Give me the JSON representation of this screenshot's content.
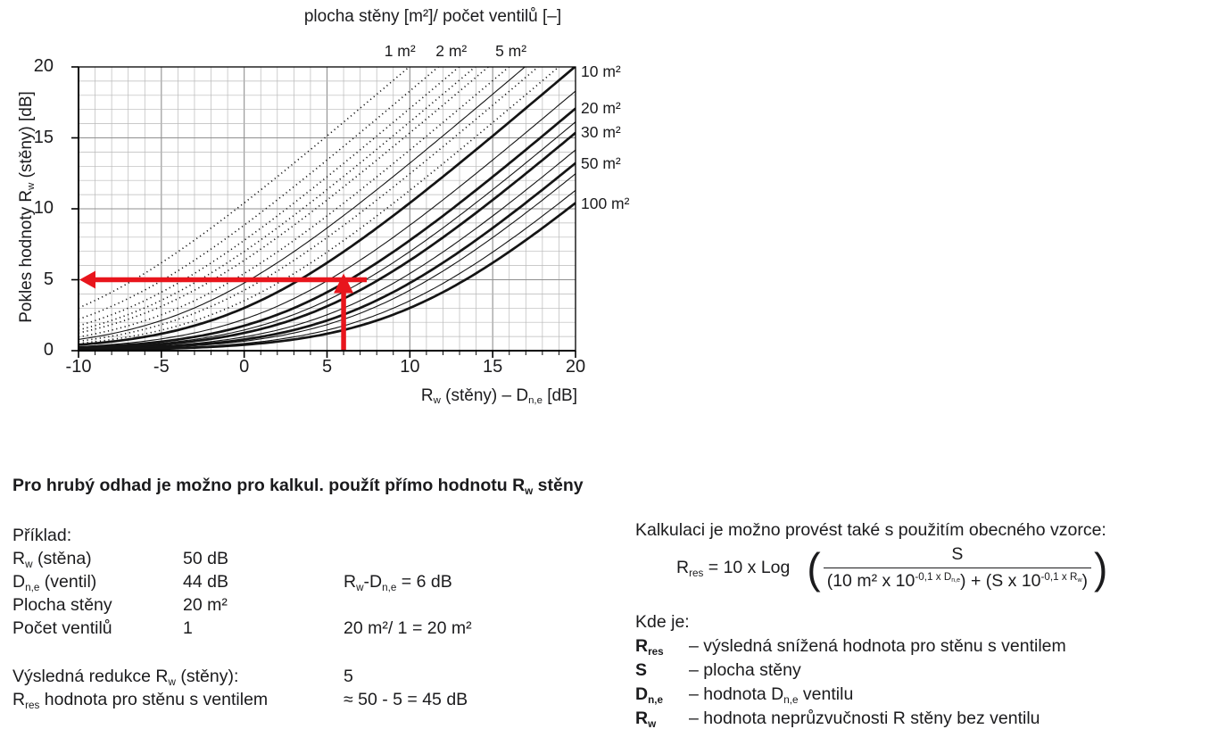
{
  "chart": {
    "title": "plocha stěny [m²]/ počet ventilů [–]",
    "y_axis_label": "Pokles hodnoty R_{w} (stěny) [dB]",
    "x_axis_label": "R_{w} (stěny) – D_{n,e} [dB]"
  },
  "chart_data": {
    "type": "line",
    "title": "plocha stěny [m²]/ počet ventilů [–]",
    "xlabel": "Rw (stěny) – Dn,e [dB]",
    "ylabel": "Pokles hodnoty Rw (stěny) [dB]",
    "xlim": [
      -10,
      20
    ],
    "ylim": [
      0,
      20
    ],
    "x_ticks": [
      -10,
      -5,
      0,
      5,
      10,
      15,
      20
    ],
    "y_ticks": [
      0,
      5,
      10,
      15,
      20
    ],
    "grid": "minor gridlines every 1 dB on both axes",
    "function": "pokles = 10*log10(1 + (10/Sn)*10^(x/10)), Sn = plocha stěny / počet ventilů [m²]",
    "x_samples": [
      -10,
      -5,
      0,
      5,
      10,
      15,
      20
    ],
    "series": [
      {
        "area_per_valve": 1,
        "style": "dotted",
        "label": "1 m²",
        "label_side": "top",
        "label_x": 9.4,
        "y_at_x": [
          3.0,
          6.2,
          10.4,
          15.1,
          20.0,
          20.0,
          20.0
        ]
      },
      {
        "area_per_valve": 1.5,
        "style": "dotted",
        "y_at_x": [
          2.2,
          4.9,
          8.8,
          13.4,
          18.3,
          20.0,
          20.0
        ]
      },
      {
        "area_per_valve": 2,
        "style": "dotted",
        "label": "2 m²",
        "label_side": "top",
        "label_x": 12.5,
        "y_at_x": [
          1.8,
          4.1,
          7.8,
          12.3,
          17.1,
          20.0,
          20.0
        ]
      },
      {
        "area_per_valve": 2.5,
        "style": "dotted",
        "y_at_x": [
          1.5,
          3.6,
          7.0,
          11.4,
          16.1,
          20.0,
          20.0
        ]
      },
      {
        "area_per_valve": 3,
        "style": "dotted",
        "y_at_x": [
          1.2,
          3.1,
          6.4,
          10.6,
          15.4,
          20.0,
          20.0
        ]
      },
      {
        "area_per_valve": 4,
        "style": "dotted",
        "y_at_x": [
          1.0,
          2.5,
          5.4,
          9.5,
          14.1,
          19.0,
          20.0
        ]
      },
      {
        "area_per_valve": 5,
        "style": "thin",
        "label": "5 m²",
        "label_side": "top",
        "label_x": 16.1,
        "y_at_x": [
          0.8,
          2.1,
          4.8,
          8.6,
          13.2,
          18.1,
          20.0
        ]
      },
      {
        "area_per_valve": 6,
        "style": "dotted",
        "y_at_x": [
          0.7,
          1.8,
          4.3,
          8.0,
          12.5,
          17.3,
          20.0
        ]
      },
      {
        "area_per_valve": 8,
        "style": "dotted",
        "y_at_x": [
          0.5,
          1.4,
          3.5,
          6.9,
          11.3,
          16.1,
          20.0
        ]
      },
      {
        "area_per_valve": 10,
        "style": "thick",
        "label": "10 m²",
        "label_side": "right",
        "y_at_x": [
          0.4,
          1.2,
          3.0,
          6.2,
          10.4,
          15.1,
          20.0
        ]
      },
      {
        "area_per_valve": 15,
        "style": "thin",
        "y_at_x": [
          0.3,
          0.8,
          2.2,
          4.9,
          8.8,
          13.4,
          18.3
        ]
      },
      {
        "area_per_valve": 20,
        "style": "thick",
        "label": "20 m²",
        "label_side": "right",
        "y_at_x": [
          0.2,
          0.6,
          1.8,
          4.1,
          7.8,
          12.3,
          17.1
        ]
      },
      {
        "area_per_valve": 25,
        "style": "thin",
        "y_at_x": [
          0.2,
          0.5,
          1.5,
          3.6,
          7.0,
          11.4,
          16.1
        ]
      },
      {
        "area_per_valve": 30,
        "style": "thick",
        "label": "30 m²",
        "label_side": "right",
        "y_at_x": [
          0.1,
          0.4,
          1.2,
          3.1,
          6.4,
          10.6,
          15.4
        ]
      },
      {
        "area_per_valve": 40,
        "style": "thin",
        "y_at_x": [
          0.1,
          0.3,
          1.0,
          2.5,
          5.4,
          9.5,
          14.1
        ]
      },
      {
        "area_per_valve": 50,
        "style": "thick",
        "label": "50 m²",
        "label_side": "right",
        "y_at_x": [
          0.1,
          0.3,
          0.8,
          2.1,
          4.8,
          8.6,
          13.2
        ]
      },
      {
        "area_per_valve": 60,
        "style": "thin",
        "y_at_x": [
          0.1,
          0.2,
          0.7,
          1.8,
          4.3,
          8.0,
          12.5
        ]
      },
      {
        "area_per_valve": 80,
        "style": "thin",
        "y_at_x": [
          0.1,
          0.2,
          0.5,
          1.4,
          3.5,
          6.9,
          11.3
        ]
      },
      {
        "area_per_valve": 100,
        "style": "thick",
        "label": "100 m²",
        "label_side": "right",
        "y_at_x": [
          0.0,
          0.1,
          0.4,
          1.2,
          3.0,
          6.2,
          10.4
        ]
      }
    ],
    "annotation": {
      "type": "arrow",
      "x": 6,
      "y": 5,
      "color": "#e8151c"
    },
    "legend_position": "labels on curves (top and right)"
  },
  "sections": {
    "heading": "Pro hrubý odhad je možno pro kalkul. použít přímo hodnotu R_{w} stěny"
  },
  "example": {
    "title": "Příklad:",
    "rows": [
      {
        "label": "R_{w} (stěna)",
        "value": "50 dB",
        "note": ""
      },
      {
        "label": "D_{n,e} (ventil)",
        "value": "44 dB",
        "note": "R_{w}-D_{n,e} = 6 dB"
      },
      {
        "label": "Plocha stěny",
        "value": "20 m²",
        "note": ""
      },
      {
        "label": "Počet ventilů",
        "value": "1",
        "note": "20 m²/ 1 = 20 m²"
      }
    ],
    "results": [
      {
        "label": "Výsledná redukce R_{w} (stěny):",
        "value": "5"
      },
      {
        "label": "R_{res} hodnota pro stěnu s ventilem",
        "value": "≈ 50 - 5 = 45 dB"
      }
    ]
  },
  "formula_block": {
    "intro": "Kalkulaci je možno provést také s použitím obecného vzorce:",
    "lhs": "R_{res} = 10 x Log",
    "paren_open": "(",
    "paren_close": ")",
    "numerator": "S",
    "den_open": "(10 m² x 10",
    "exp1": "-0,1 x D_{n,e}",
    "den_mid": ") + (S x 10",
    "exp2": "-0,1 x R_{w}",
    "den_close": ")"
  },
  "where": {
    "title": "Kde je:",
    "items": [
      {
        "symbol": "R_{res}",
        "desc": "– výsledná snížená hodnota pro stěnu s ventilem"
      },
      {
        "symbol": "S",
        "desc": "– plocha stěny"
      },
      {
        "symbol": "D_{n,e}",
        "desc": "– hodnota D_{n,e} ventilu"
      },
      {
        "symbol": "R_{w}",
        "desc": "– hodnota neprůzvučnosti R stěny bez ventilu"
      }
    ]
  },
  "colors": {
    "text": "#1b1b1d",
    "curve": "#141414",
    "grid_minor": "#b9b9b9",
    "grid_major": "#8f8f8f",
    "frame": "#000000",
    "arrow_red": "#e8151c"
  }
}
